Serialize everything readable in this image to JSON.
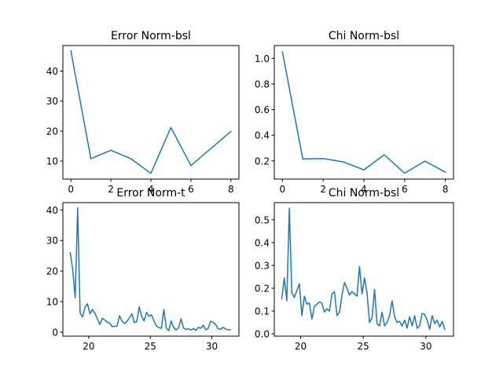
{
  "colors": {
    "series": "#1f77b4"
  },
  "chart_data": [
    {
      "type": "line",
      "title": "Error Norm-bsl",
      "xlim": [
        -0.4,
        8.4
      ],
      "ylim": [
        4.0,
        48.5
      ],
      "xticks": [
        0,
        2,
        4,
        6,
        8
      ],
      "xtick_labels": [
        "0",
        "2",
        "4",
        "6",
        "8"
      ],
      "yticks": [
        10,
        20,
        30,
        40
      ],
      "ytick_labels": [
        "10",
        "20",
        "30",
        "40"
      ],
      "x": [
        0,
        1,
        2,
        3,
        4,
        5,
        6,
        7,
        8
      ],
      "y": [
        46.7,
        10.8,
        13.6,
        10.8,
        5.9,
        21.2,
        8.5,
        14.2,
        19.9
      ]
    },
    {
      "type": "line",
      "title": "Chi Norm-bsl",
      "xlim": [
        -0.4,
        8.4
      ],
      "ylim": [
        0.058,
        1.1
      ],
      "xticks": [
        0,
        2,
        4,
        6,
        8
      ],
      "xtick_labels": [
        "0",
        "2",
        "4",
        "6",
        "8"
      ],
      "yticks": [
        0.2,
        0.4,
        0.6,
        0.8,
        1.0
      ],
      "ytick_labels": [
        "0.2",
        "0.4",
        "0.6",
        "0.8",
        "1.0"
      ],
      "x": [
        0,
        1,
        2,
        3,
        4,
        5,
        6,
        7,
        8
      ],
      "y": [
        1.05,
        0.215,
        0.218,
        0.192,
        0.13,
        0.248,
        0.104,
        0.198,
        0.112
      ]
    },
    {
      "type": "line",
      "title": "Error Norm-t",
      "xlim": [
        17.9,
        32.2
      ],
      "ylim": [
        -1.3,
        42.4
      ],
      "xticks": [
        20,
        25,
        30
      ],
      "xtick_labels": [
        "20",
        "25",
        "30"
      ],
      "yticks": [
        0,
        10,
        20,
        30,
        40
      ],
      "ytick_labels": [
        "0",
        "10",
        "20",
        "30",
        "40"
      ],
      "x": [
        18.5,
        18.7,
        18.9,
        19.1,
        19.3,
        19.5,
        19.7,
        19.9,
        20.1,
        20.3,
        20.5,
        20.7,
        20.9,
        21.1,
        21.3,
        21.5,
        21.7,
        21.9,
        22.1,
        22.3,
        22.5,
        22.7,
        22.9,
        23.1,
        23.3,
        23.5,
        23.7,
        23.9,
        24.1,
        24.3,
        24.5,
        24.7,
        24.9,
        25.1,
        25.3,
        25.5,
        25.7,
        25.9,
        26.1,
        26.3,
        26.5,
        26.7,
        26.9,
        27.1,
        27.3,
        27.5,
        27.7,
        27.9,
        28.1,
        28.3,
        28.5,
        28.7,
        28.9,
        29.1,
        29.3,
        29.5,
        29.7,
        29.9,
        30.1,
        30.3,
        30.5,
        30.7,
        30.9,
        31.1,
        31.3,
        31.5
      ],
      "y": [
        26,
        20.5,
        11.2,
        40.7,
        6.3,
        5,
        8.2,
        9.3,
        6,
        7.4,
        6.2,
        4.4,
        2.5,
        4.5,
        4,
        3.3,
        3,
        1.8,
        1.9,
        2,
        5.4,
        3.7,
        2.8,
        3.5,
        4.7,
        6,
        3.2,
        3.4,
        8.3,
        5.2,
        3.7,
        6.5,
        5.2,
        5.7,
        3.7,
        2,
        1.5,
        1.3,
        7.4,
        1.4,
        0.5,
        3.7,
        1.5,
        0.7,
        1.5,
        4.4,
        1.4,
        0.9,
        1.1,
        0.7,
        1.2,
        0.6,
        1.6,
        1.3,
        2.3,
        0.8,
        1.2,
        3.6,
        3.2,
        2.6,
        1.2,
        0.9,
        1.6,
        1.1,
        0.8,
        0.8
      ]
    },
    {
      "type": "line",
      "title": "Chi Norm-bsl",
      "xlim": [
        17.9,
        32.2
      ],
      "ylim": [
        -0.01,
        0.575
      ],
      "xticks": [
        20,
        25,
        30
      ],
      "xtick_labels": [
        "20",
        "25",
        "30"
      ],
      "yticks": [
        0.0,
        0.1,
        0.2,
        0.3,
        0.4,
        0.5
      ],
      "ytick_labels": [
        "0.0",
        "0.1",
        "0.2",
        "0.3",
        "0.4",
        "0.5"
      ],
      "x": [
        18.5,
        18.7,
        18.9,
        19.1,
        19.3,
        19.5,
        19.7,
        19.9,
        20.1,
        20.3,
        20.5,
        20.7,
        20.9,
        21.1,
        21.3,
        21.5,
        21.7,
        21.9,
        22.1,
        22.3,
        22.5,
        22.7,
        22.9,
        23.1,
        23.3,
        23.5,
        23.7,
        23.9,
        24.1,
        24.3,
        24.5,
        24.7,
        24.9,
        25.1,
        25.3,
        25.5,
        25.7,
        25.9,
        26.1,
        26.3,
        26.5,
        26.7,
        26.9,
        27.1,
        27.3,
        27.5,
        27.7,
        27.9,
        28.1,
        28.3,
        28.5,
        28.7,
        28.9,
        29.1,
        29.3,
        29.5,
        29.7,
        29.9,
        30.1,
        30.3,
        30.5,
        30.7,
        30.9,
        31.1,
        31.3,
        31.5
      ],
      "y": [
        0.155,
        0.245,
        0.145,
        0.55,
        0.18,
        0.16,
        0.19,
        0.22,
        0.08,
        0.165,
        0.13,
        0.135,
        0.065,
        0.12,
        0.13,
        0.14,
        0.135,
        0.095,
        0.11,
        0.1,
        0.175,
        0.185,
        0.08,
        0.095,
        0.17,
        0.225,
        0.2,
        0.17,
        0.185,
        0.175,
        0.165,
        0.295,
        0.175,
        0.245,
        0.18,
        0.05,
        0.07,
        0.195,
        0.045,
        0.035,
        0.095,
        0.035,
        0.05,
        0.08,
        0.145,
        0.075,
        0.05,
        0.055,
        0.035,
        0.06,
        0.025,
        0.075,
        0.035,
        0.08,
        0.025,
        0.035,
        0.09,
        0.085,
        0.06,
        0.02,
        0.08,
        0.045,
        0.06,
        0.03,
        0.055,
        0.02
      ]
    }
  ]
}
